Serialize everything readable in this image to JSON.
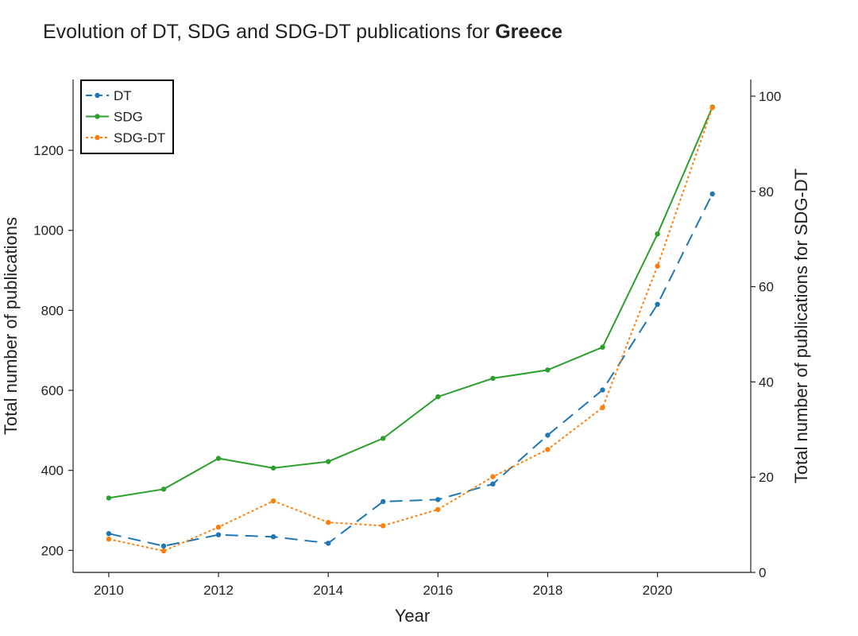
{
  "chart_data": {
    "type": "line",
    "title": "Evolution of DT, SDG and SDG-DT publications for",
    "title_country": "Greece",
    "xlabel": "Year",
    "ylabel": "Total number of publications",
    "y2label": "Total number of publications for SDG-DT",
    "x": [
      2010,
      2011,
      2012,
      2013,
      2014,
      2015,
      2016,
      2017,
      2018,
      2019,
      2020,
      2021
    ],
    "xlim": [
      2009.35,
      2021.7
    ],
    "ylim": [
      145,
      1377
    ],
    "y2lim": [
      0,
      103.5
    ],
    "xticks": [
      "2010",
      "2012",
      "2014",
      "2016",
      "2018",
      "2020"
    ],
    "yticks": [
      "200",
      "400",
      "600",
      "800",
      "1000",
      "1200"
    ],
    "y2ticks": [
      "0",
      "20",
      "40",
      "60",
      "80",
      "100"
    ],
    "grid": false,
    "legend_position": "top-left",
    "series": [
      {
        "name": "DT",
        "axis": "left",
        "color": "#1f77b4",
        "style": "dashed",
        "values": [
          242,
          211,
          239,
          234,
          218,
          322,
          327,
          366,
          488,
          601,
          815,
          1091
        ]
      },
      {
        "name": "SDG",
        "axis": "left",
        "color": "#2ca02c",
        "style": "solid",
        "values": [
          331,
          353,
          430,
          406,
          422,
          480,
          584,
          630,
          651,
          708,
          991,
          1308
        ]
      },
      {
        "name": "SDG-DT",
        "axis": "right",
        "color": "#ff7f0e",
        "style": "dotted",
        "values": [
          7,
          4.5,
          9.5,
          15,
          10.5,
          9.8,
          13.2,
          20.1,
          25.8,
          34.6,
          64.3,
          97.6
        ]
      }
    ]
  }
}
